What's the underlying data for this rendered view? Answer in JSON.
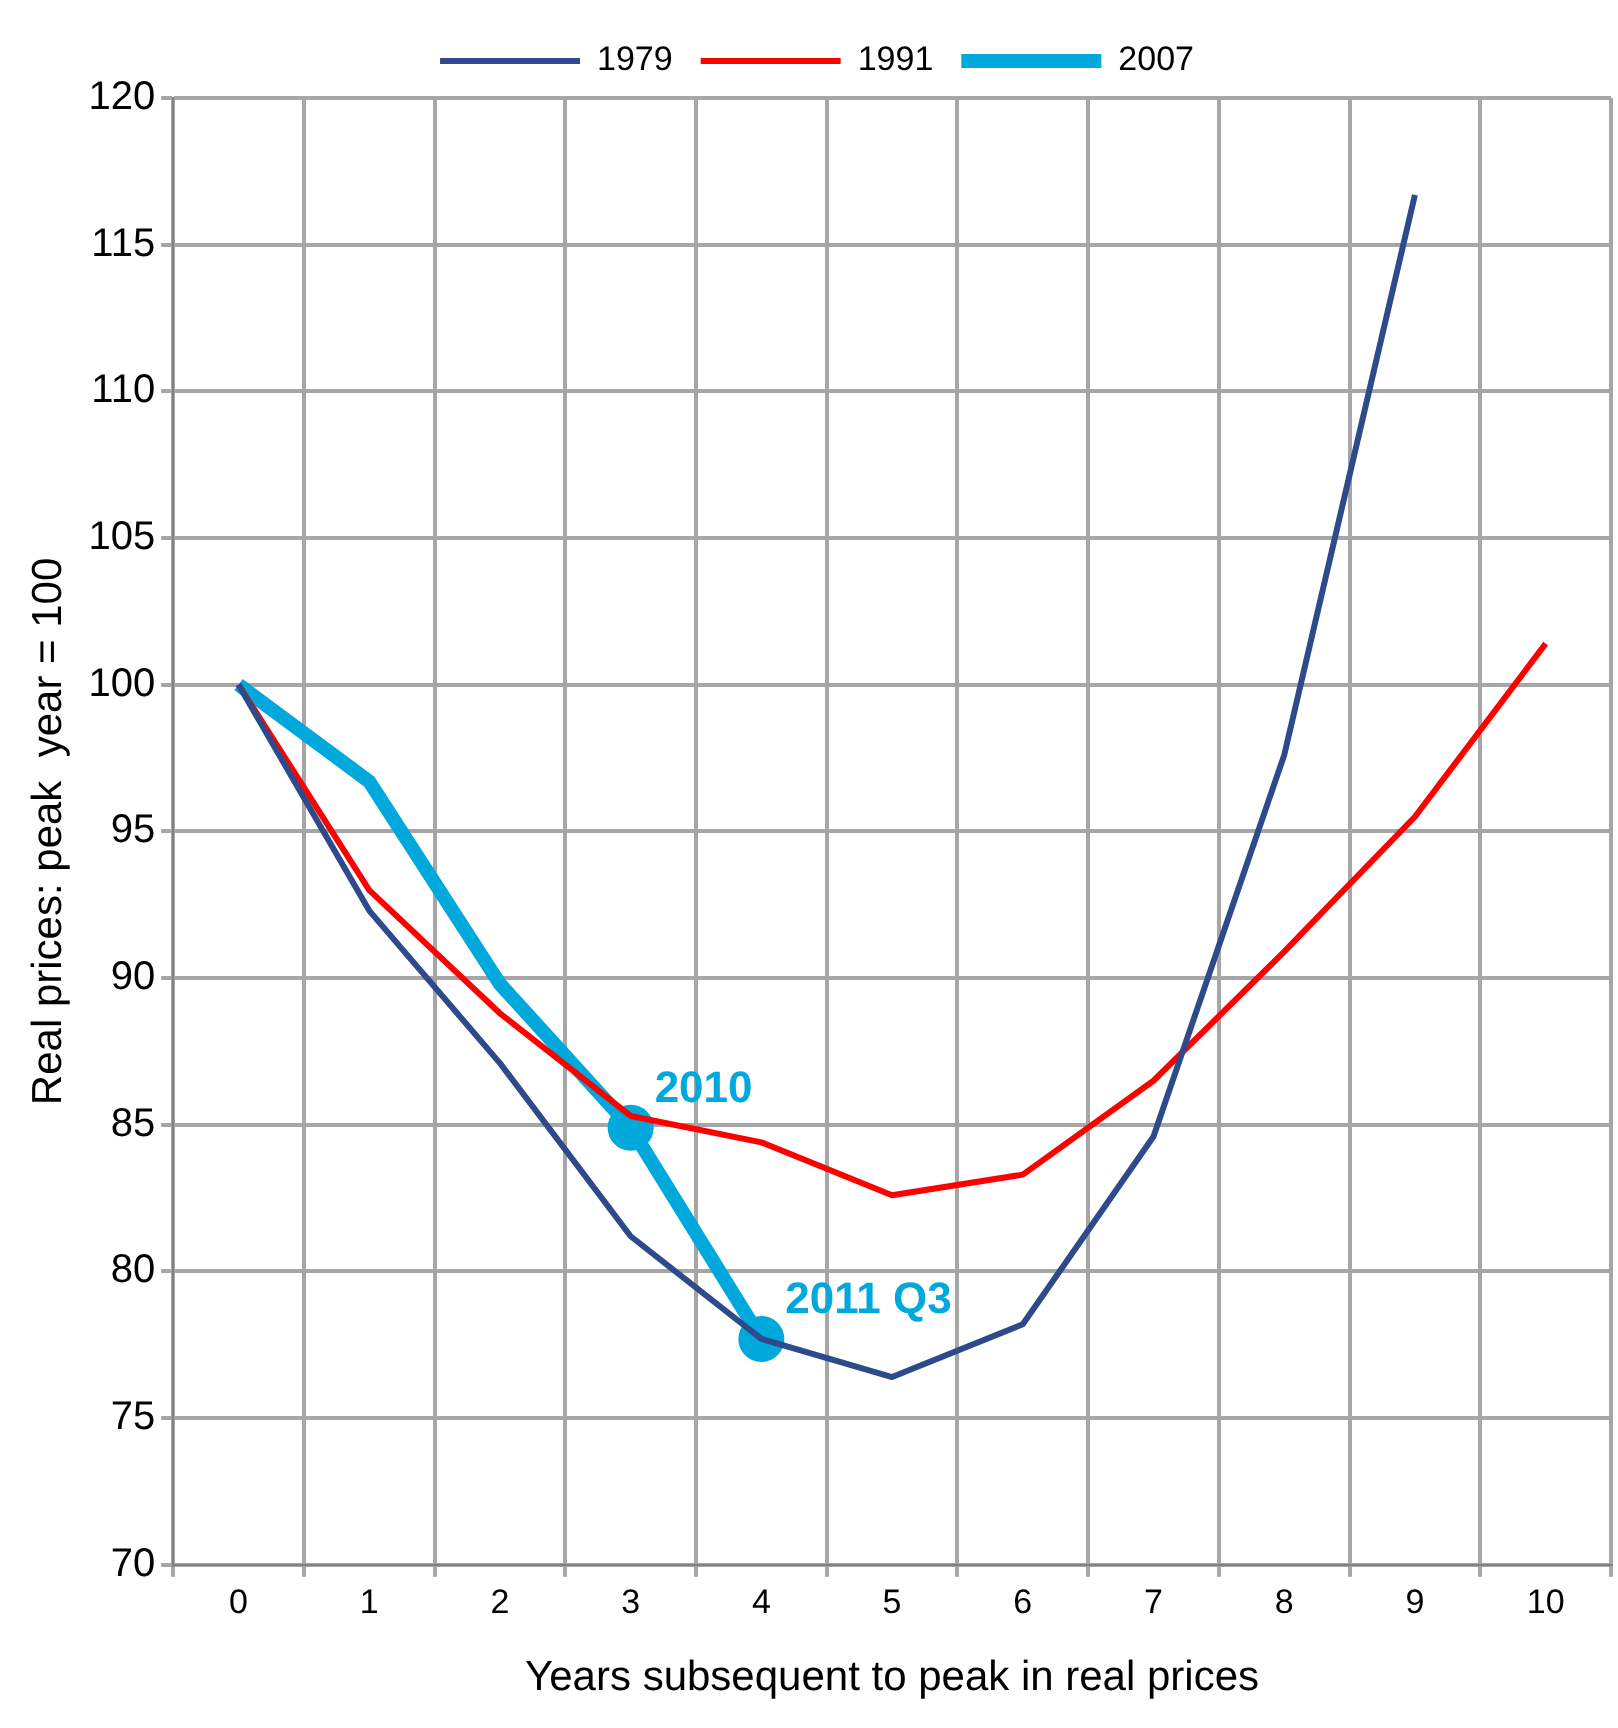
{
  "chart_data": {
    "type": "line",
    "xlabel": "Years subsequent to peak in real prices",
    "ylabel": "Real prices: peak  year = 100",
    "categories": [
      "0",
      "1",
      "2",
      "3",
      "4",
      "5",
      "6",
      "7",
      "8",
      "9",
      "10"
    ],
    "series": [
      {
        "name": "1979",
        "color": "#2e4a8a",
        "values": [
          100,
          92.3,
          87.1,
          81.2,
          77.7,
          76.4,
          78.2,
          84.6,
          97.6,
          116.7,
          null
        ]
      },
      {
        "name": "1991",
        "color": "#ff0000",
        "values": [
          100,
          93.0,
          88.8,
          85.3,
          84.4,
          82.6,
          83.3,
          86.5,
          90.9,
          95.5,
          101.4
        ]
      },
      {
        "name": "2007",
        "color": "#00a8dc",
        "values": [
          100,
          96.7,
          89.8,
          84.9,
          77.7,
          null,
          null,
          null,
          null,
          null,
          null
        ]
      }
    ],
    "annotations": [
      {
        "text": "2010",
        "x": "3",
        "y": 84.9
      },
      {
        "text": "2011 Q3",
        "x": "4",
        "y": 77.7
      }
    ],
    "ylim": [
      70,
      120
    ],
    "yticks": [
      70,
      75,
      80,
      85,
      90,
      95,
      100,
      105,
      110,
      115,
      120
    ],
    "grid": true,
    "legend": "top",
    "marker": "none",
    "line_style": "solid"
  }
}
